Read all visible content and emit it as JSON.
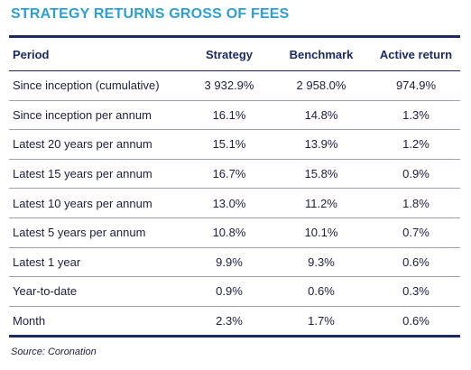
{
  "title": "STRATEGY RETURNS GROSS OF FEES",
  "table": {
    "headers": [
      "Period",
      "Strategy",
      "Benchmark",
      "Active return"
    ],
    "rows": [
      [
        "Since inception (cumulative)",
        "3 932.9%",
        "2 958.0%",
        "974.9%"
      ],
      [
        "Since inception per annum",
        "16.1%",
        "14.8%",
        "1.3%"
      ],
      [
        "Latest 20 years per annum",
        "15.1%",
        "13.9%",
        "1.2%"
      ],
      [
        "Latest 15 years per annum",
        "16.7%",
        "15.8%",
        "0.9%"
      ],
      [
        "Latest 10 years per annum",
        "13.0%",
        "11.2%",
        "1.8%"
      ],
      [
        "Latest 5 years per annum",
        "10.8%",
        "10.1%",
        "0.7%"
      ],
      [
        "Latest 1 year",
        "9.9%",
        "9.3%",
        "0.6%"
      ],
      [
        "Year-to-date",
        "0.9%",
        "0.6%",
        "0.3%"
      ],
      [
        "Month",
        "2.3%",
        "1.7%",
        "0.6%"
      ]
    ]
  },
  "source": "Source: Coronation",
  "colors": {
    "title": "#2e9fd3",
    "rule": "#1b2a63",
    "text": "#1b1f3b"
  }
}
